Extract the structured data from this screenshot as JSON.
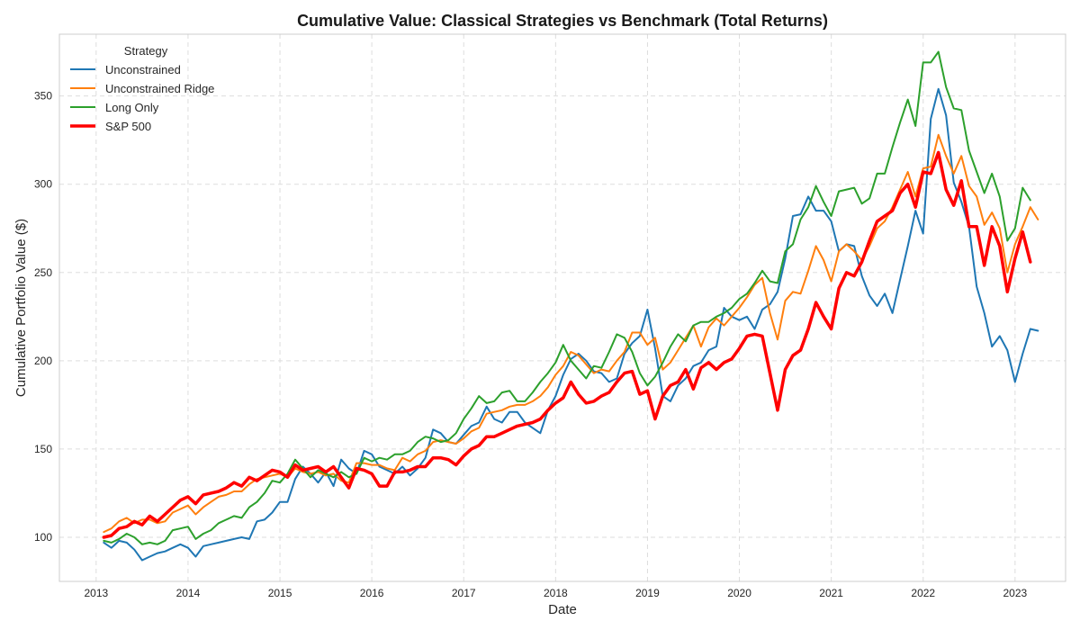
{
  "chart_data": {
    "type": "line",
    "title": "Cumulative Value: Classical Strategies vs Benchmark (Total Returns)",
    "xlabel": "Date",
    "ylabel": "Cumulative Portfolio Value ($)",
    "xlim": [
      2012.6,
      2023.55
    ],
    "ylim": [
      75,
      385
    ],
    "x_ticks": [
      2013,
      2014,
      2015,
      2016,
      2017,
      2018,
      2019,
      2020,
      2021,
      2022,
      2023
    ],
    "x_tick_labels": [
      "2013",
      "2014",
      "2015",
      "2016",
      "2017",
      "2018",
      "2019",
      "2020",
      "2021",
      "2022",
      "2023"
    ],
    "y_ticks": [
      100,
      150,
      200,
      250,
      300,
      350
    ],
    "y_tick_labels": [
      "100",
      "150",
      "200",
      "250",
      "300",
      "350"
    ],
    "grid": true,
    "legend": {
      "title": "Strategy",
      "position": "top-left"
    },
    "x_start": 2013.083,
    "x_step": 0.08333,
    "series": [
      {
        "name": "Unconstrained",
        "color": "#1f77b4",
        "width": 2,
        "values": [
          97,
          94,
          98,
          97,
          93,
          87,
          89,
          91,
          92,
          94,
          96,
          94,
          89,
          95,
          96,
          97,
          98,
          99,
          100,
          99,
          109,
          110,
          114,
          120,
          120,
          133,
          140,
          136,
          131,
          137,
          129,
          144,
          139,
          136,
          149,
          147,
          140,
          138,
          136,
          140,
          135,
          139,
          145,
          161,
          159,
          154,
          153,
          158,
          163,
          165,
          174,
          167,
          165,
          171,
          171,
          165,
          162,
          159,
          172,
          180,
          192,
          201,
          204,
          200,
          194,
          193,
          188,
          190,
          204,
          210,
          214,
          229,
          207,
          180,
          177,
          186,
          190,
          197,
          199,
          206,
          208,
          230,
          225,
          223,
          225,
          218,
          229,
          232,
          239,
          258,
          282,
          283,
          293,
          285,
          285,
          279,
          262,
          266,
          265,
          248,
          237,
          231,
          238,
          227,
          246,
          265,
          285,
          272,
          337,
          354,
          339,
          301,
          290,
          276,
          242,
          227,
          208,
          214,
          206,
          188,
          204,
          218,
          217
        ]
      },
      {
        "name": "Unconstrained Ridge",
        "color": "#ff7f0e",
        "width": 2,
        "values": [
          103,
          105,
          109,
          111,
          108,
          110,
          110,
          108,
          109,
          114,
          116,
          118,
          113,
          117,
          120,
          123,
          124,
          126,
          126,
          130,
          133,
          134,
          135,
          136,
          134,
          139,
          137,
          136,
          137,
          135,
          136,
          132,
          131,
          142,
          142,
          141,
          141,
          139,
          138,
          145,
          143,
          147,
          149,
          154,
          155,
          154,
          153,
          156,
          160,
          162,
          170,
          171,
          172,
          174,
          175,
          175,
          177,
          180,
          185,
          192,
          197,
          205,
          203,
          198,
          193,
          195,
          194,
          200,
          205,
          216,
          216,
          209,
          213,
          195,
          199,
          206,
          213,
          220,
          208,
          219,
          224,
          220,
          225,
          230,
          236,
          243,
          247,
          227,
          212,
          234,
          239,
          238,
          251,
          265,
          257,
          245,
          262,
          266,
          262,
          257,
          265,
          275,
          279,
          287,
          297,
          307,
          293,
          309,
          310,
          328,
          316,
          306,
          316,
          299,
          293,
          277,
          284,
          275,
          250,
          266,
          276,
          287,
          280
        ]
      },
      {
        "name": "Long Only",
        "color": "#2ca02c",
        "width": 2,
        "values": [
          98,
          97,
          99,
          102,
          100,
          96,
          97,
          96,
          98,
          104,
          105,
          106,
          99,
          102,
          104,
          108,
          110,
          112,
          111,
          117,
          120,
          125,
          132,
          131,
          136,
          144,
          139,
          134,
          138,
          136,
          134,
          137,
          134,
          136,
          145,
          143,
          145,
          144,
          147,
          147,
          149,
          154,
          157,
          156,
          154,
          155,
          159,
          167,
          173,
          180,
          176,
          177,
          182,
          183,
          177,
          177,
          182,
          188,
          193,
          199,
          209,
          200,
          195,
          190,
          197,
          196,
          205,
          215,
          213,
          205,
          193,
          186,
          191,
          199,
          208,
          215,
          211,
          220,
          222,
          222,
          225,
          227,
          230,
          235,
          238,
          244,
          251,
          245,
          244,
          262,
          266,
          280,
          287,
          299,
          290,
          282,
          296,
          297,
          298,
          289,
          292,
          306,
          306,
          321,
          335,
          348,
          333,
          369,
          369,
          375,
          355,
          343,
          342,
          319,
          307,
          295,
          306,
          293,
          268,
          275,
          298,
          291
        ]
      },
      {
        "name": "S&P 500",
        "color": "#ff0000",
        "width": 3.5,
        "values": [
          100,
          101,
          105,
          106,
          109,
          107,
          112,
          109,
          113,
          117,
          121,
          123,
          119,
          124,
          125,
          126,
          128,
          131,
          129,
          134,
          132,
          135,
          138,
          137,
          134,
          141,
          138,
          139,
          140,
          137,
          140,
          134,
          128,
          139,
          138,
          136,
          129,
          129,
          137,
          137,
          138,
          140,
          140,
          145,
          145,
          144,
          141,
          146,
          150,
          152,
          157,
          157,
          159,
          161,
          163,
          164,
          165,
          167,
          172,
          176,
          179,
          188,
          181,
          176,
          177,
          180,
          182,
          188,
          193,
          194,
          181,
          183,
          167,
          180,
          186,
          188,
          195,
          184,
          196,
          199,
          195,
          199,
          201,
          207,
          214,
          215,
          214,
          193,
          172,
          195,
          203,
          206,
          218,
          233,
          225,
          218,
          241,
          250,
          248,
          256,
          268,
          279,
          282,
          285,
          295,
          300,
          287,
          307,
          306,
          318,
          297,
          288,
          302,
          276,
          276,
          254,
          276,
          265,
          239,
          258,
          273,
          256
        ]
      }
    ]
  }
}
